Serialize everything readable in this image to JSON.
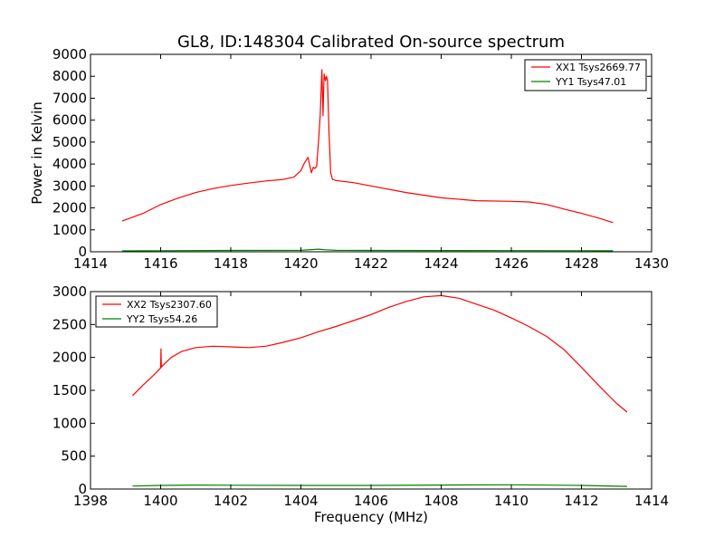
{
  "chart_data": [
    {
      "type": "line",
      "title": "GL8, ID:148304 Calibrated On-source spectrum",
      "xlabel": "",
      "ylabel": "Power in Kelvin",
      "xlim": [
        1414,
        1430
      ],
      "ylim": [
        0,
        9000
      ],
      "xticks": [
        1414,
        1416,
        1418,
        1420,
        1422,
        1424,
        1426,
        1428,
        1430
      ],
      "yticks": [
        0,
        1000,
        2000,
        3000,
        4000,
        5000,
        6000,
        7000,
        8000,
        9000
      ],
      "grid": false,
      "legend_position": "top-right",
      "series": [
        {
          "name": "XX1 Tsys2669.77",
          "color": "#ff0000",
          "x": [
            1414.9,
            1415.5,
            1416.0,
            1416.5,
            1417.0,
            1417.5,
            1418.0,
            1418.5,
            1419.0,
            1419.5,
            1419.8,
            1420.0,
            1420.1,
            1420.2,
            1420.3,
            1420.35,
            1420.4,
            1420.45,
            1420.5,
            1420.55,
            1420.6,
            1420.63,
            1420.66,
            1420.7,
            1420.73,
            1420.76,
            1420.8,
            1420.85,
            1420.9,
            1421.0,
            1421.5,
            1422.0,
            1423.0,
            1424.0,
            1425.0,
            1426.0,
            1426.5,
            1427.0,
            1427.5,
            1428.0,
            1428.5,
            1428.9
          ],
          "values": [
            1400,
            1750,
            2150,
            2450,
            2700,
            2880,
            3020,
            3130,
            3230,
            3300,
            3400,
            3700,
            4050,
            4300,
            3600,
            3850,
            3800,
            3900,
            5000,
            6200,
            8300,
            6200,
            8100,
            7800,
            8000,
            7800,
            5500,
            3600,
            3300,
            3250,
            3150,
            3000,
            2700,
            2460,
            2330,
            2300,
            2270,
            2160,
            1950,
            1750,
            1530,
            1330
          ]
        },
        {
          "name": "YY1 Tsys47.01",
          "color": "#008000",
          "x": [
            1414.9,
            1416.0,
            1418.0,
            1420.0,
            1420.5,
            1420.7,
            1421.0,
            1422.0,
            1424.0,
            1426.0,
            1428.0,
            1428.9
          ],
          "values": [
            40,
            50,
            60,
            65,
            120,
            90,
            65,
            60,
            58,
            55,
            50,
            45
          ]
        }
      ]
    },
    {
      "type": "line",
      "title": "",
      "xlabel": "Frequency (MHz)",
      "ylabel": "",
      "xlim": [
        1398,
        1414
      ],
      "ylim": [
        0,
        3000
      ],
      "xticks": [
        1398,
        1400,
        1402,
        1404,
        1406,
        1408,
        1410,
        1412,
        1414
      ],
      "yticks": [
        0,
        500,
        1000,
        1500,
        2000,
        2500,
        3000
      ],
      "grid": false,
      "legend_position": "top-left",
      "series": [
        {
          "name": "XX2 Tsys2307.60",
          "color": "#ff0000",
          "x": [
            1399.2,
            1399.5,
            1399.8,
            1400.0,
            1400.01,
            1400.02,
            1400.03,
            1400.3,
            1400.6,
            1401.0,
            1401.5,
            1402.0,
            1402.5,
            1403.0,
            1403.5,
            1404.0,
            1404.5,
            1405.0,
            1405.5,
            1406.0,
            1406.5,
            1407.0,
            1407.5,
            1408.0,
            1408.5,
            1409.0,
            1409.5,
            1410.0,
            1410.5,
            1411.0,
            1411.5,
            1412.0,
            1412.5,
            1413.0,
            1413.3
          ],
          "values": [
            1420,
            1580,
            1730,
            1840,
            2130,
            1850,
            1860,
            2000,
            2090,
            2150,
            2170,
            2160,
            2150,
            2170,
            2230,
            2300,
            2390,
            2470,
            2560,
            2650,
            2760,
            2850,
            2920,
            2940,
            2900,
            2810,
            2720,
            2600,
            2470,
            2320,
            2120,
            1850,
            1570,
            1300,
            1170
          ]
        },
        {
          "name": "YY2 Tsys54.26",
          "color": "#008000",
          "x": [
            1399.2,
            1400.0,
            1401.0,
            1402.0,
            1404.0,
            1406.0,
            1408.0,
            1410.0,
            1412.0,
            1413.3
          ],
          "values": [
            45,
            55,
            60,
            58,
            55,
            55,
            60,
            65,
            55,
            40
          ]
        }
      ]
    }
  ]
}
